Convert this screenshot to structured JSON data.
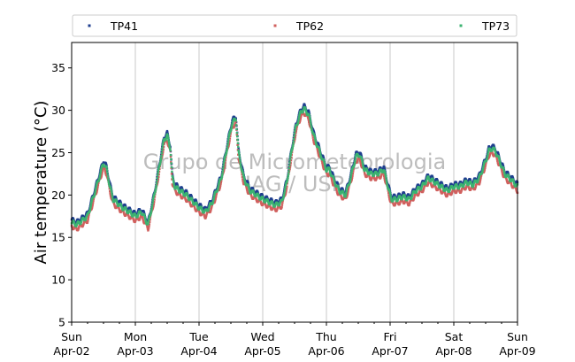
{
  "chart_data": {
    "type": "scatter",
    "ylabel": "Air temperature (°C)",
    "xlabel": "",
    "title": "",
    "ylim": [
      5,
      38
    ],
    "yticks": [
      5,
      10,
      15,
      20,
      25,
      30,
      35
    ],
    "xlim_days": [
      0,
      7
    ],
    "xticks": [
      {
        "day": 0,
        "line1": "Sun",
        "line2": "Apr-02"
      },
      {
        "day": 1,
        "line1": "Mon",
        "line2": "Apr-03"
      },
      {
        "day": 2,
        "line1": "Tue",
        "line2": "Apr-04"
      },
      {
        "day": 3,
        "line1": "Wed",
        "line2": "Apr-05"
      },
      {
        "day": 4,
        "line1": "Thu",
        "line2": "Apr-06"
      },
      {
        "day": 5,
        "line1": "Fri",
        "line2": "Apr-07"
      },
      {
        "day": 6,
        "line1": "Sat",
        "line2": "Apr-08"
      },
      {
        "day": 7,
        "line1": "Sun",
        "line2": "Apr-09"
      }
    ],
    "grid": "vertical",
    "legend_position": "top",
    "watermark": [
      "Grupo de Micrometeorologia",
      "IAG / USP"
    ],
    "series": [
      {
        "name": "TP41",
        "color": "#1f3f8f",
        "offset": 0.3
      },
      {
        "name": "TP62",
        "color": "#d0605e",
        "offset": -0.5
      },
      {
        "name": "TP73",
        "color": "#3cb371",
        "offset": 0.0
      }
    ],
    "base_curve": {
      "x": [
        0.0,
        0.08,
        0.25,
        0.35,
        0.45,
        0.5,
        0.55,
        0.6,
        0.65,
        0.8,
        1.0,
        1.1,
        1.2,
        1.3,
        1.38,
        1.45,
        1.5,
        1.55,
        1.58,
        1.62,
        1.7,
        1.8,
        2.0,
        2.1,
        2.2,
        2.35,
        2.45,
        2.52,
        2.58,
        2.62,
        2.7,
        2.8,
        3.0,
        3.2,
        3.3,
        3.38,
        3.45,
        3.52,
        3.6,
        3.65,
        3.72,
        3.8,
        3.9,
        4.0,
        4.05,
        4.1,
        4.2,
        4.3,
        4.38,
        4.46,
        4.52,
        4.6,
        4.7,
        4.8,
        4.9,
        5.0,
        5.02,
        5.1,
        5.2,
        5.3,
        5.4,
        5.5,
        5.6,
        5.7,
        5.8,
        5.9,
        6.0,
        6.1,
        6.2,
        6.3,
        6.4,
        6.5,
        6.55,
        6.6,
        6.65,
        6.72,
        6.8,
        6.9,
        7.0
      ],
      "y": [
        16.8,
        16.5,
        17.5,
        20.0,
        22.5,
        23.8,
        23.0,
        21.0,
        19.5,
        18.5,
        17.5,
        18.0,
        16.5,
        20.0,
        23.5,
        26.5,
        27.0,
        25.5,
        22.0,
        21.0,
        20.5,
        20.0,
        18.5,
        18.0,
        19.0,
        22.0,
        26.0,
        28.5,
        29.0,
        25.0,
        22.0,
        20.5,
        19.5,
        18.8,
        19.2,
        21.5,
        25.0,
        28.0,
        29.8,
        30.2,
        29.5,
        27.0,
        25.0,
        23.0,
        23.0,
        22.0,
        20.5,
        20.0,
        22.0,
        24.5,
        24.8,
        23.0,
        22.5,
        22.5,
        23.0,
        20.0,
        19.5,
        19.5,
        19.8,
        19.5,
        20.5,
        21.0,
        22.0,
        21.5,
        21.0,
        20.5,
        21.0,
        21.0,
        21.5,
        21.2,
        22.0,
        24.0,
        25.2,
        25.5,
        25.2,
        24.0,
        22.5,
        21.8,
        21.0
      ]
    }
  }
}
